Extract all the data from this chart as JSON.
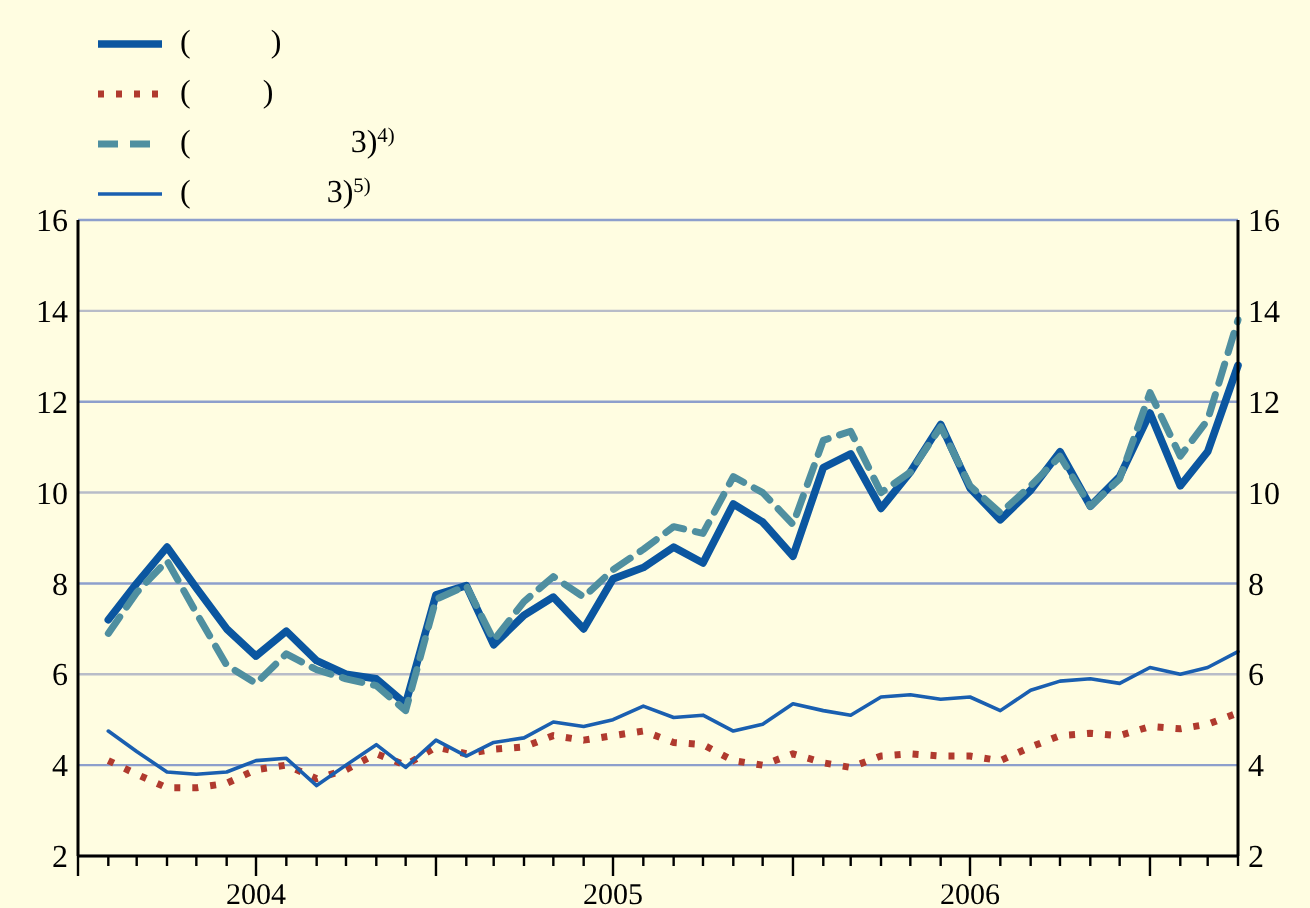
{
  "chart_data": {
    "type": "line",
    "legend": "top left",
    "grid": "y",
    "x": [
      "2004-02",
      "2004-03",
      "2004-04",
      "2004-05",
      "2004-06",
      "2004-07",
      "2004-08",
      "2004-09",
      "2004-10",
      "2004-11",
      "2004-12",
      "2005-01",
      "2005-02",
      "2005-03",
      "2005-04",
      "2005-05",
      "2005-06",
      "2005-07",
      "2005-08",
      "2005-09",
      "2005-10",
      "2005-11",
      "2005-12",
      "2006-01",
      "2006-02",
      "2006-03",
      "2006-04",
      "2006-05",
      "2006-06",
      "2006-07",
      "2006-08",
      "2006-09",
      "2006-10",
      "2006-11",
      "2006-12",
      "2007-01",
      "2007-02",
      "2007-03",
      "2007-04"
    ],
    "xlim": [
      "2004-01",
      "2007-04"
    ],
    "xticks": [
      {
        "value": "2004-01",
        "label": null
      },
      {
        "value": "2004-02",
        "label": null
      },
      {
        "value": "2004-03",
        "label": null
      },
      {
        "value": "2004-04",
        "label": null
      },
      {
        "value": "2004-05",
        "label": null
      },
      {
        "value": "2004-06",
        "label": null
      },
      {
        "value": "2004-07",
        "label": "2004"
      },
      {
        "value": "2004-08",
        "label": null
      },
      {
        "value": "2004-09",
        "label": null
      },
      {
        "value": "2004-10",
        "label": null
      },
      {
        "value": "2004-11",
        "label": null
      },
      {
        "value": "2004-12",
        "label": null
      },
      {
        "value": "2005-01",
        "label": null
      },
      {
        "value": "2005-02",
        "label": null
      },
      {
        "value": "2005-03",
        "label": null
      },
      {
        "value": "2005-04",
        "label": null
      },
      {
        "value": "2005-05",
        "label": null
      },
      {
        "value": "2005-06",
        "label": null
      },
      {
        "value": "2005-07",
        "label": "2005"
      },
      {
        "value": "2005-08",
        "label": null
      },
      {
        "value": "2005-09",
        "label": null
      },
      {
        "value": "2005-10",
        "label": null
      },
      {
        "value": "2005-11",
        "label": null
      },
      {
        "value": "2005-12",
        "label": null
      },
      {
        "value": "2006-01",
        "label": null
      },
      {
        "value": "2006-02",
        "label": null
      },
      {
        "value": "2006-03",
        "label": null
      },
      {
        "value": "2006-04",
        "label": null
      },
      {
        "value": "2006-05",
        "label": null
      },
      {
        "value": "2006-06",
        "label": null
      },
      {
        "value": "2006-07",
        "label": "2006"
      },
      {
        "value": "2006-08",
        "label": null
      },
      {
        "value": "2006-09",
        "label": null
      },
      {
        "value": "2006-10",
        "label": null
      },
      {
        "value": "2006-11",
        "label": null
      },
      {
        "value": "2006-12",
        "label": null
      },
      {
        "value": "2007-01",
        "label": null
      },
      {
        "value": "2007-02",
        "label": null
      },
      {
        "value": "2007-03",
        "label": null
      },
      {
        "value": "2007-04",
        "label": null
      }
    ],
    "ylim": [
      2,
      16
    ],
    "yticks": [
      2,
      4,
      6,
      8,
      10,
      12,
      14,
      16
    ],
    "y2lim": [
      2,
      16
    ],
    "y2ticks": [
      2,
      4,
      6,
      8,
      10,
      12,
      14,
      16
    ],
    "series": [
      {
        "name": "(          )",
        "color": "#0b56a0",
        "line_style": "solid",
        "values": [
          7.2,
          8.0,
          8.8,
          7.9,
          7.0,
          6.4,
          6.95,
          6.3,
          6.0,
          5.9,
          5.35,
          7.75,
          7.95,
          6.65,
          7.3,
          7.7,
          7.0,
          8.1,
          8.35,
          8.8,
          8.45,
          9.75,
          9.35,
          8.6,
          10.55,
          10.85,
          9.65,
          10.45,
          11.5,
          10.1,
          9.4,
          10.05,
          10.9,
          9.7,
          10.35,
          11.75,
          10.15,
          10.9,
          12.8
        ]
      },
      {
        "name": "(         )",
        "color": "#b03a2e",
        "line_style": "dotted",
        "values": [
          4.1,
          3.8,
          3.5,
          3.5,
          3.6,
          3.9,
          4.0,
          3.7,
          3.9,
          4.25,
          4.0,
          4.4,
          4.25,
          4.35,
          4.4,
          4.65,
          4.55,
          4.65,
          4.75,
          4.5,
          4.45,
          4.1,
          4.0,
          4.25,
          4.05,
          3.95,
          4.2,
          4.25,
          4.2,
          4.2,
          4.1,
          4.4,
          4.65,
          4.7,
          4.65,
          4.85,
          4.8,
          4.9,
          5.15
        ]
      },
      {
        "name": "(                    3)$^{4)}$",
        "color": "#4f8fa0",
        "line_style": "dashed",
        "values": [
          6.9,
          7.8,
          8.5,
          7.35,
          6.2,
          5.8,
          6.45,
          6.1,
          5.9,
          5.75,
          5.2,
          7.65,
          7.95,
          6.75,
          7.6,
          8.15,
          7.7,
          8.3,
          8.75,
          9.25,
          9.1,
          10.35,
          10.0,
          9.3,
          11.15,
          11.35,
          10.0,
          10.45,
          11.45,
          10.15,
          9.55,
          10.15,
          10.8,
          9.7,
          10.3,
          12.2,
          10.8,
          11.6,
          13.8
        ]
      },
      {
        "name": "(                 3)$^{5)}$",
        "color": "#1a5fb0",
        "line_style": "solid",
        "values": [
          4.75,
          4.3,
          3.85,
          3.8,
          3.85,
          4.1,
          4.15,
          3.55,
          4.0,
          4.45,
          3.95,
          4.55,
          4.2,
          4.5,
          4.6,
          4.95,
          4.85,
          5.0,
          5.3,
          5.05,
          5.1,
          4.75,
          4.9,
          5.35,
          5.2,
          5.1,
          5.5,
          5.55,
          5.45,
          5.5,
          5.2,
          5.65,
          5.85,
          5.9,
          5.8,
          6.15,
          6.0,
          6.15,
          6.5
        ]
      }
    ]
  }
}
